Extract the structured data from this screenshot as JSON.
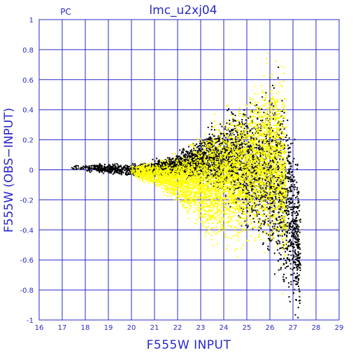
{
  "chart_data": {
    "type": "scatter",
    "title": "lmc_u2xj04",
    "corner_label": "PC",
    "xlabel": "F555W INPUT",
    "ylabel": "F555W (OBS−INPUT)",
    "xlim": [
      16,
      29
    ],
    "ylim": [
      -1,
      1
    ],
    "x_ticks": [
      "16",
      "17",
      "18",
      "19",
      "20",
      "21",
      "22",
      "23",
      "24",
      "25",
      "26",
      "27",
      "28",
      "29"
    ],
    "y_ticks": [
      "1",
      "0.8",
      "0.6",
      "0.4",
      "0.2",
      "0",
      "-0.2",
      "-0.4",
      "-0.6",
      "-0.8",
      "-1"
    ],
    "grid": true,
    "colors": {
      "axes": "#2828c8",
      "grid": "#2828c8",
      "text": "#2828c8",
      "series_black": "#000000",
      "series_yellow": "#ffff00"
    },
    "series": [
      {
        "color": "black",
        "trend": [
          {
            "x": 17.4,
            "center": 0.01,
            "spread": 0.015
          },
          {
            "x": 18.5,
            "center": 0.01,
            "spread": 0.02
          },
          {
            "x": 19.5,
            "center": 0.0,
            "spread": 0.03
          },
          {
            "x": 20.5,
            "center": 0.0,
            "spread": 0.03
          },
          {
            "x": 21.5,
            "center": 0.02,
            "spread": 0.05
          },
          {
            "x": 22.5,
            "center": 0.05,
            "spread": 0.08
          },
          {
            "x": 23.5,
            "center": 0.08,
            "spread": 0.15
          },
          {
            "x": 24.5,
            "center": 0.07,
            "spread": 0.25
          },
          {
            "x": 25.5,
            "center": 0.0,
            "spread": 0.35
          },
          {
            "x": 26.3,
            "center": -0.05,
            "spread": 0.45
          },
          {
            "x": 26.8,
            "center": -0.2,
            "spread": 0.5
          },
          {
            "x": 27.3,
            "center": -0.6,
            "spread": 0.35
          }
        ]
      },
      {
        "color": "yellow",
        "trend": [
          {
            "x": 20.0,
            "center": -0.01,
            "spread": 0.03
          },
          {
            "x": 21.0,
            "center": -0.03,
            "spread": 0.06
          },
          {
            "x": 22.0,
            "center": -0.07,
            "spread": 0.12
          },
          {
            "x": 22.8,
            "center": -0.08,
            "spread": 0.2
          },
          {
            "x": 23.5,
            "center": -0.08,
            "spread": 0.28
          },
          {
            "x": 24.5,
            "center": -0.05,
            "spread": 0.35
          },
          {
            "x": 25.5,
            "center": 0.05,
            "spread": 0.4
          },
          {
            "x": 26.3,
            "center": 0.1,
            "spread": 0.45
          },
          {
            "x": 26.7,
            "center": -0.1,
            "spread": 0.5
          }
        ]
      }
    ]
  }
}
